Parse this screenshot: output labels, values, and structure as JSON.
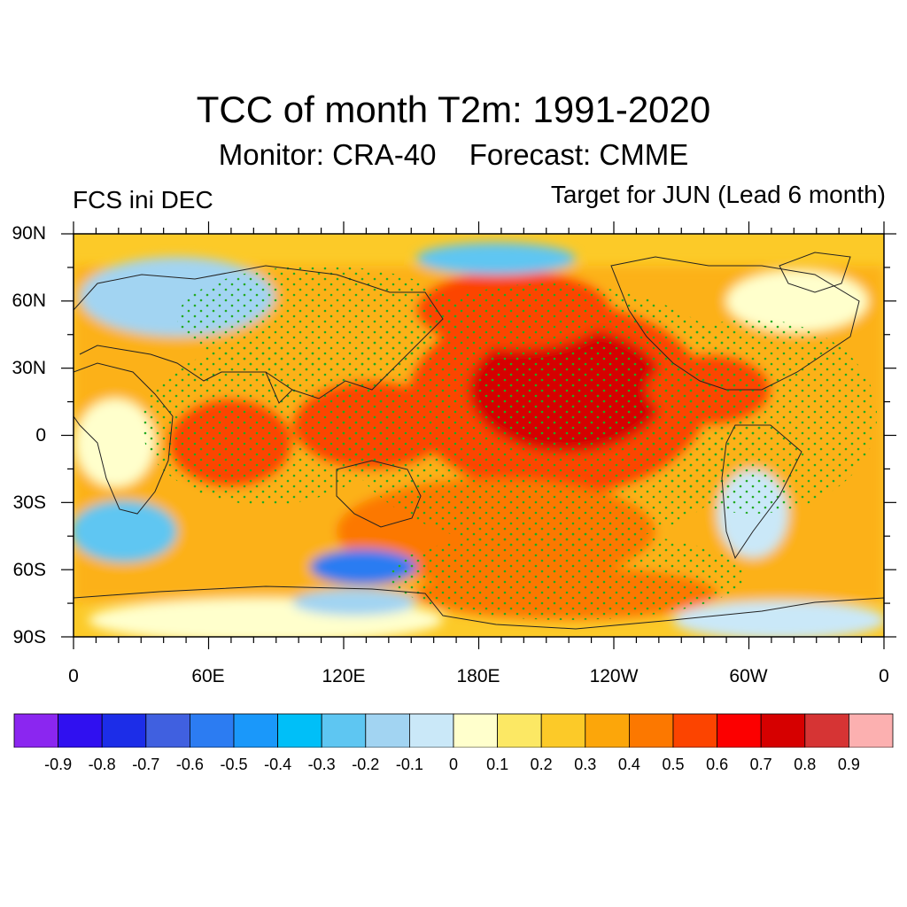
{
  "header": {
    "title": "TCC of month T2m: 1991-2020",
    "monitor": "Monitor: CRA-40",
    "forecast": "Forecast: CMME",
    "left_note": "FCS ini DEC",
    "right_note": "Target for JUN (Lead 6 month)"
  },
  "map": {
    "projection": "equirectangular",
    "lon_range_label": "0 to 0 (0-360E)",
    "lat_labels": [
      "90N",
      "60N",
      "30N",
      "0",
      "30S",
      "60S",
      "90S"
    ],
    "lon_labels": [
      "0",
      "60E",
      "120E",
      "180E",
      "120W",
      "60W",
      "0"
    ],
    "stippling": "green dots mark significant correlation"
  },
  "colorbar": {
    "labels": [
      "-0.9",
      "-0.8",
      "-0.7",
      "-0.6",
      "-0.5",
      "-0.4",
      "-0.3",
      "-0.2",
      "-0.1",
      "0",
      "0.1",
      "0.2",
      "0.3",
      "0.4",
      "0.5",
      "0.6",
      "0.7",
      "0.8",
      "0.9"
    ],
    "colors": [
      "#8b26f0",
      "#3010f0",
      "#1c2de8",
      "#4060e0",
      "#2c7cf2",
      "#1a98fa",
      "#00bff8",
      "#5ec6f2",
      "#a2d4f2",
      "#cae8f8",
      "#ffffcc",
      "#fce864",
      "#fcca28",
      "#fca60a",
      "#fc7800",
      "#fc4400",
      "#fc0000",
      "#d60000",
      "#d63434",
      "#fcb0b0"
    ]
  }
}
